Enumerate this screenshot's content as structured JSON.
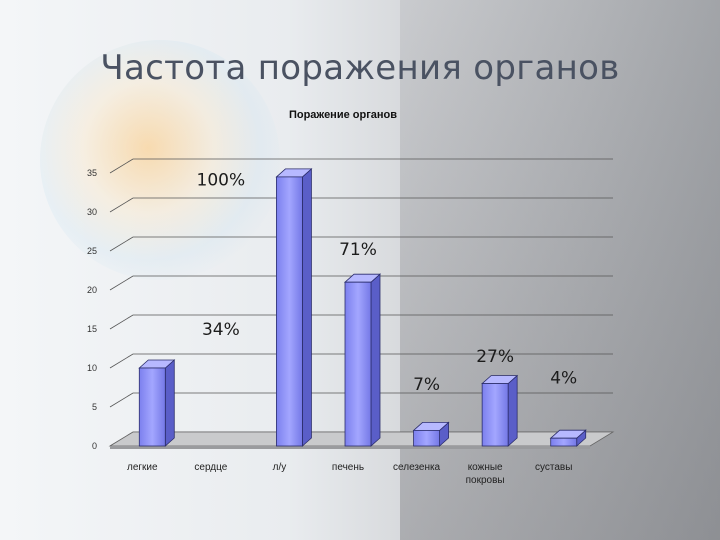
{
  "slide": {
    "title": "Частота поражения органов"
  },
  "chart_data": {
    "type": "bar",
    "title": "Поражение органов",
    "categories": [
      "легкие",
      "сердце",
      "л/у",
      "печень",
      "селезенка",
      "кожные покровы",
      "суставы"
    ],
    "values": [
      10,
      0,
      34.5,
      21,
      2,
      8,
      1
    ],
    "ylim": [
      0,
      35
    ],
    "yticks": [
      "0",
      "5",
      "10",
      "15",
      "20",
      "25",
      "30",
      "35"
    ],
    "grid": true,
    "percent_labels": [
      {
        "text": "34%",
        "category_index": 1,
        "y": 14.2
      },
      {
        "text": "100%",
        "category_index": 1,
        "y": 33.4
      },
      {
        "text": "71%",
        "category_index": 3,
        "y": 24.5
      },
      {
        "text": "7%",
        "category_index": 4,
        "y": 7.2
      },
      {
        "text": "27%",
        "category_index": 5,
        "y": 10.8
      },
      {
        "text": "4%",
        "category_index": 6,
        "y": 8.0
      }
    ],
    "bar_color": "#8e92f2"
  }
}
